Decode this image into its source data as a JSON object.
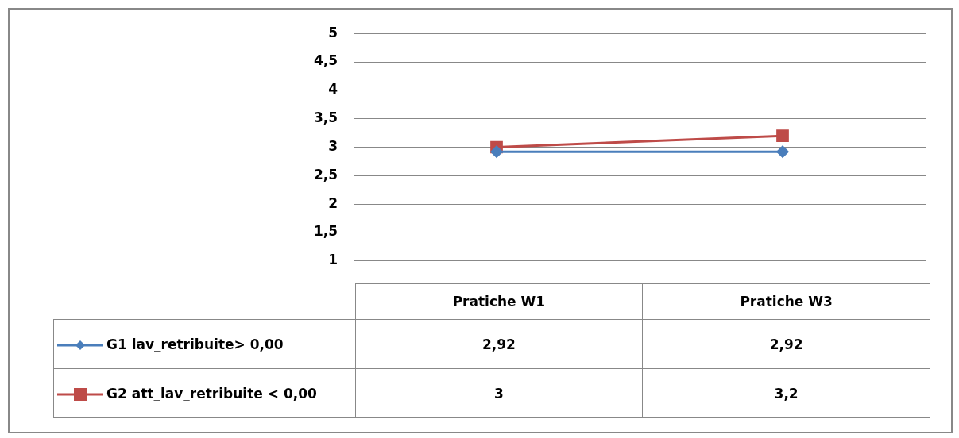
{
  "chart_data": {
    "type": "line",
    "categories": [
      "Pratiche W1",
      "Pratiche W3"
    ],
    "series": [
      {
        "name": "G1 lav_retribuite> 0,00",
        "color": "#4a7ebb",
        "marker": "diamond",
        "values": [
          2.92,
          2.92
        ],
        "value_labels": [
          "2,92",
          "2,92"
        ]
      },
      {
        "name": "G2 att_lav_retribuite < 0,00",
        "color": "#be4b48",
        "marker": "square",
        "values": [
          3,
          3.2
        ],
        "value_labels": [
          "3",
          "3,2"
        ]
      }
    ],
    "ylim": [
      1,
      5
    ],
    "yticks": [
      1,
      {
        "value": 1.5,
        "label": "1,5"
      },
      2,
      {
        "value": 2.5,
        "label": "2,5"
      },
      3,
      {
        "value": 3.5,
        "label": "3,5"
      },
      4,
      {
        "value": 4.5,
        "label": "4,5"
      },
      5
    ],
    "grid": "y",
    "legend": "bottom",
    "line_style": "solid"
  }
}
